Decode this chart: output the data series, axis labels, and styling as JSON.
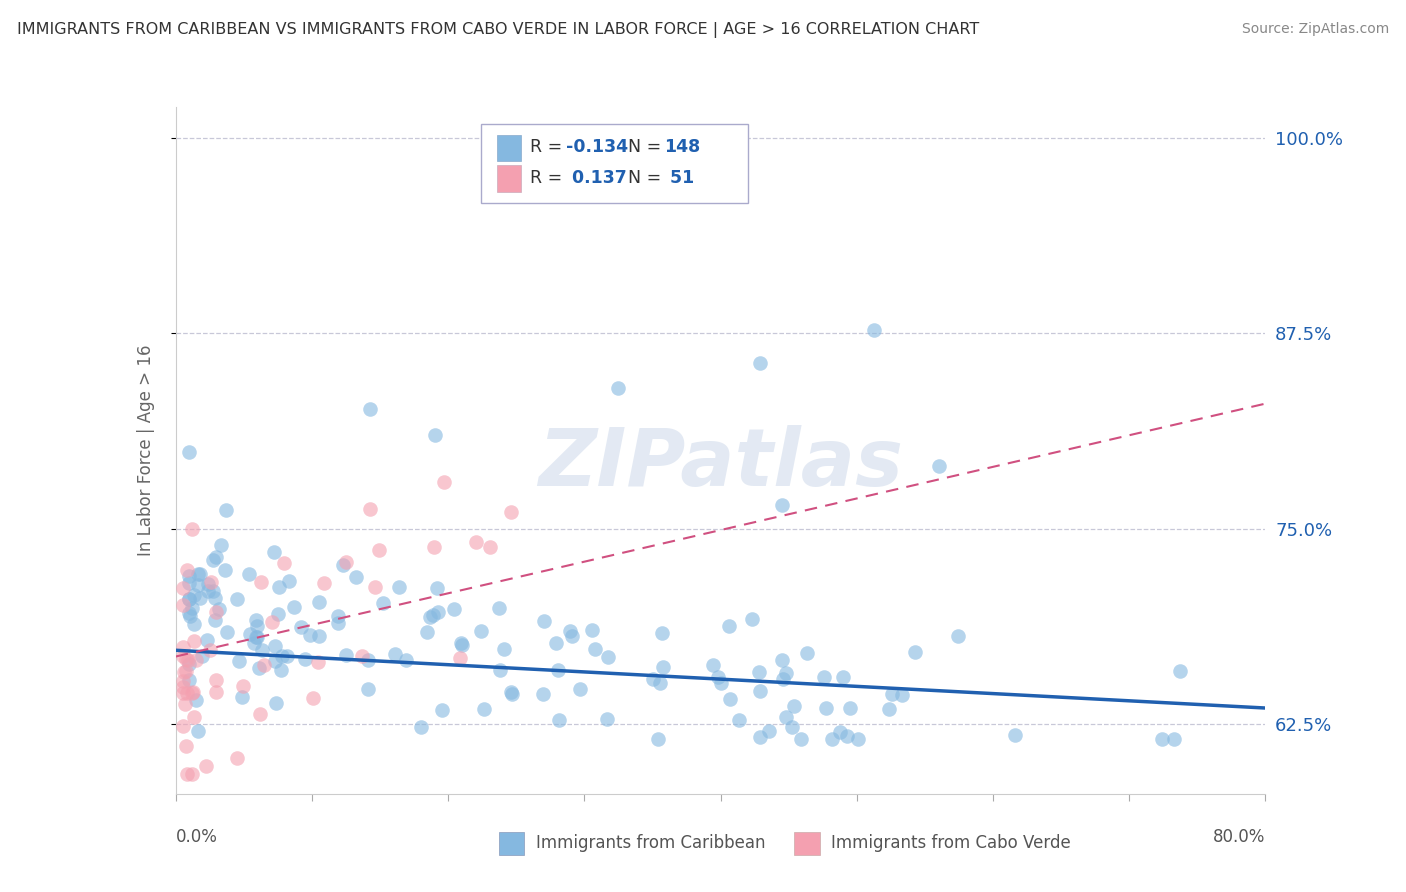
{
  "title": "IMMIGRANTS FROM CARIBBEAN VS IMMIGRANTS FROM CABO VERDE IN LABOR FORCE | AGE > 16 CORRELATION CHART",
  "source": "Source: ZipAtlas.com",
  "ylabel": "In Labor Force | Age > 16",
  "watermark": "ZIPatlas",
  "blue_color": "#85b8e0",
  "pink_color": "#f4a0b0",
  "blue_line_color": "#2060b0",
  "pink_line_color": "#d05080",
  "legend_label1": "Immigrants from Caribbean",
  "legend_label2": "Immigrants from Cabo Verde",
  "grid_color": "#c8c8d8",
  "background_color": "#ffffff",
  "xlim": [
    0.0,
    0.8
  ],
  "ylim": [
    0.58,
    1.02
  ],
  "yticks": [
    0.625,
    0.75,
    0.875,
    1.0
  ],
  "ytick_labels": [
    "62.5%",
    "75.0%",
    "87.5%",
    "100.0%"
  ],
  "blue_R": -0.134,
  "blue_N": 148,
  "pink_R": 0.137,
  "pink_N": 51,
  "blue_line_y0": 0.672,
  "blue_line_y1": 0.635,
  "pink_line_y0": 0.668,
  "pink_line_y1": 0.83
}
